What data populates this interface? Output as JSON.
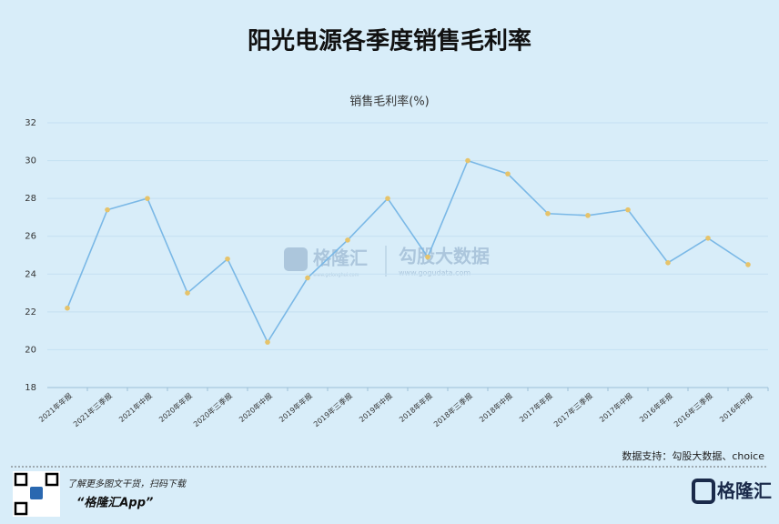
{
  "chart_data": {
    "type": "line",
    "title": "阳光电源各季度销售毛利率",
    "subtitle": "销售毛利率(%)",
    "categories": [
      "2021年年报",
      "2021年三季报",
      "2021年中报",
      "2020年年报",
      "2020年三季报",
      "2020年中报",
      "2019年年报",
      "2019年三季报",
      "2019年中报",
      "2018年年报",
      "2018年三季报",
      "2018年中报",
      "2017年年报",
      "2017年三季报",
      "2017年中报",
      "2016年年报",
      "2016年三季报",
      "2016年中报"
    ],
    "series": [
      {
        "name": "销售毛利率(%)",
        "color": "#7ab8e6",
        "marker_color": "#e6c36a",
        "values": [
          22.2,
          27.4,
          28.0,
          23.0,
          24.8,
          20.4,
          23.8,
          25.8,
          28.0,
          24.9,
          30.0,
          29.3,
          27.2,
          27.1,
          27.4,
          24.6,
          25.9,
          24.5
        ]
      }
    ],
    "ylim": [
      18,
      32
    ],
    "yticks": [
      18,
      20,
      22,
      24,
      26,
      28,
      30,
      32
    ],
    "grid": true,
    "source": "数据支持：勾股大数据、choice"
  },
  "watermark": {
    "brand": "格隆汇",
    "brand_url": "www.gelonghui.com",
    "partner": "勾股大数据",
    "partner_url": "www.gogudata.com"
  },
  "footer": {
    "tagline": "了解更多图文干货，扫码下载",
    "app": "“格隆汇App”",
    "logo": "格隆汇"
  }
}
